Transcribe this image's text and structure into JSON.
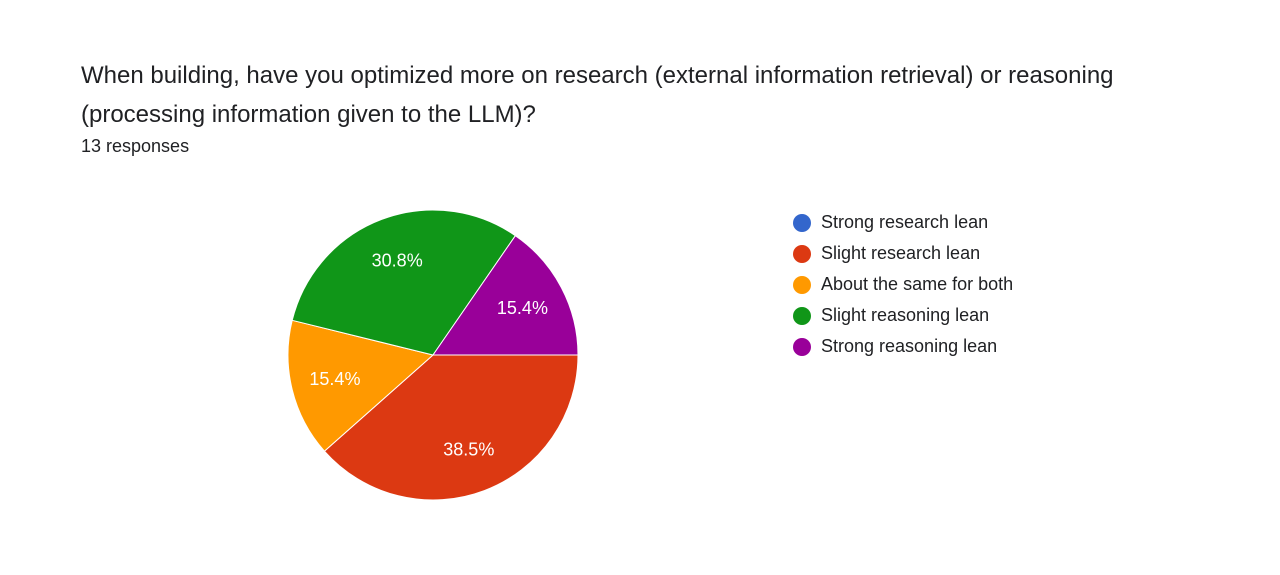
{
  "question": {
    "title": "When building, have you optimized more on research (external information retrieval) or reasoning (processing information given to the LLM)?",
    "responses": "13 responses"
  },
  "chart_data": {
    "type": "pie",
    "title": "When building, have you optimized more on research (external information retrieval) or reasoning (processing information given to the LLM)?",
    "total_responses": 13,
    "legend_position": "right",
    "start": "3 o'clock, clockwise",
    "slices": [
      {
        "label": "Strong research lean",
        "value": 0,
        "percent_label": "",
        "color": "#3366cc"
      },
      {
        "label": "Slight research lean",
        "value": 5,
        "percent_label": "38.5%",
        "color": "#dc3912"
      },
      {
        "label": "About the same for both",
        "value": 2,
        "percent_label": "15.4%",
        "color": "#ff9900"
      },
      {
        "label": "Slight reasoning lean",
        "value": 4,
        "percent_label": "30.8%",
        "color": "#109618"
      },
      {
        "label": "Strong reasoning lean",
        "value": 2,
        "percent_label": "15.4%",
        "color": "#990099"
      }
    ]
  }
}
